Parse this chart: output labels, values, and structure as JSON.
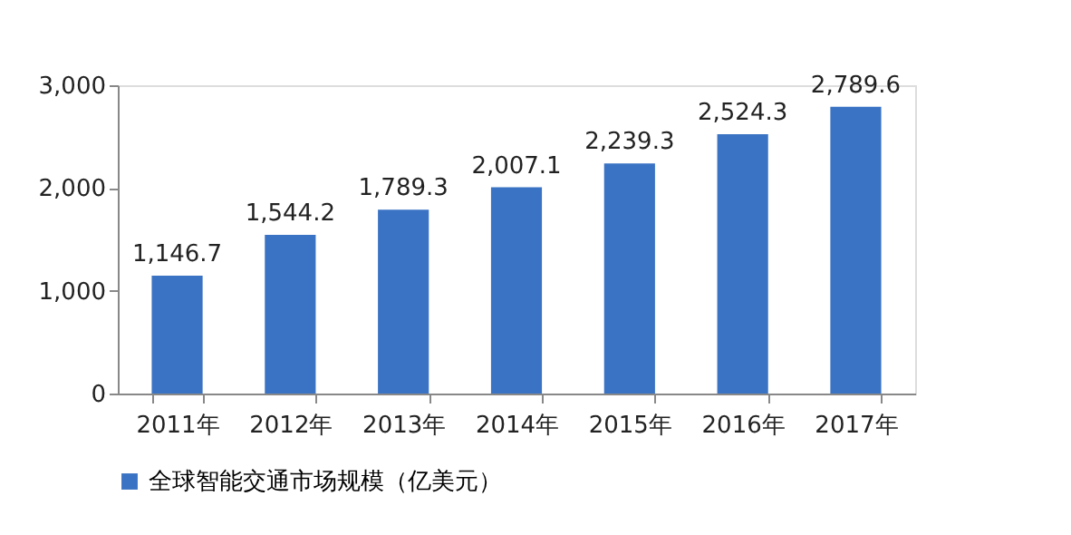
{
  "chart_data": {
    "type": "bar",
    "categories": [
      "2011年",
      "2012年",
      "2013年",
      "2014年",
      "2015年",
      "2016年",
      "2017年"
    ],
    "series": [
      {
        "name": "全球智能交通市场规模（亿美元）",
        "color": "#3a73c4",
        "values": [
          1146.7,
          1544.2,
          1789.3,
          2007.1,
          2239.3,
          2524.3,
          2789.6
        ],
        "value_labels": [
          "1,146.7",
          "1,544.2",
          "1,789.3",
          "2,007.1",
          "2,239.3",
          "2,524.3",
          "2,789.6"
        ]
      }
    ],
    "ylim": [
      0,
      3000
    ],
    "yticks": [
      {
        "value": 0,
        "label": "0"
      },
      {
        "value": 1000,
        "label": "1,000"
      },
      {
        "value": 2000,
        "label": "2,000"
      },
      {
        "value": 3000,
        "label": "3,000"
      }
    ],
    "grid": false,
    "legend": "bottom"
  }
}
